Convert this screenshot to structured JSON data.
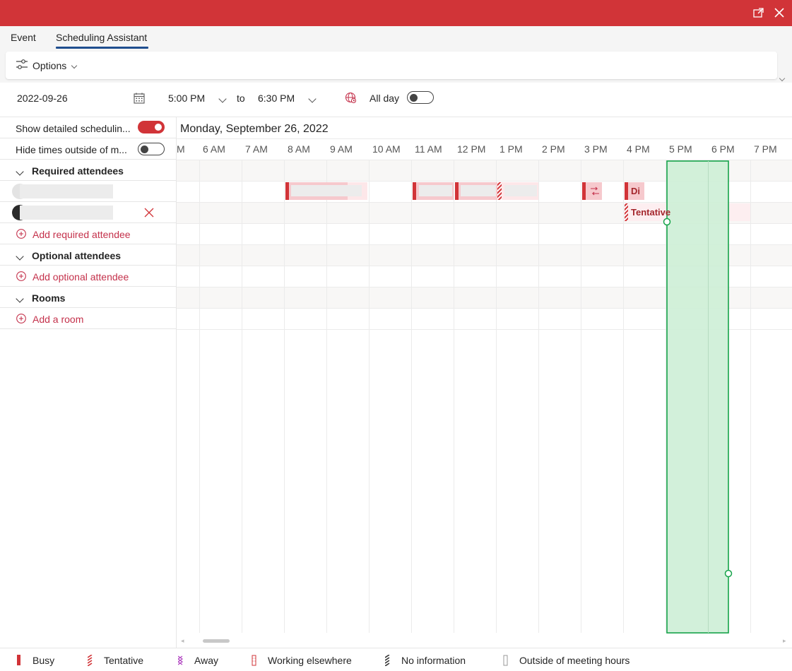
{
  "tabs": {
    "event": "Event",
    "scheduling": "Scheduling Assistant"
  },
  "toolbar": {
    "options_label": "Options"
  },
  "time_row": {
    "date": "2022-09-26",
    "start_time": "5:00 PM",
    "to_label": "to",
    "end_time": "6:30 PM",
    "all_day_label": "All day"
  },
  "settings": {
    "show_detailed": "Show detailed schedulin...",
    "hide_times": "Hide times outside of m..."
  },
  "sections": {
    "required": "Required attendees",
    "add_required": "Add required attendee",
    "optional": "Optional attendees",
    "add_optional": "Add optional attendee",
    "rooms": "Rooms",
    "add_room": "Add a room"
  },
  "timeline": {
    "date_header": "Monday, September 26, 2022",
    "hours": [
      "M",
      "6 AM",
      "7 AM",
      "8 AM",
      "9 AM",
      "10 AM",
      "11 AM",
      "12 PM",
      "1 PM",
      "2 PM",
      "3 PM",
      "4 PM",
      "5 PM",
      "6 PM",
      "7 PM"
    ],
    "event_short": "Di",
    "tentative_label": "Tentative"
  },
  "legend": {
    "busy": "Busy",
    "tentative": "Tentative",
    "away": "Away",
    "working_elsewhere": "Working elsewhere",
    "no_info": "No information",
    "outside_hours": "Outside of meeting hours"
  },
  "colors": {
    "accent": "#d13438",
    "selection": "#cdeed6",
    "selection_border": "#16a34a"
  }
}
